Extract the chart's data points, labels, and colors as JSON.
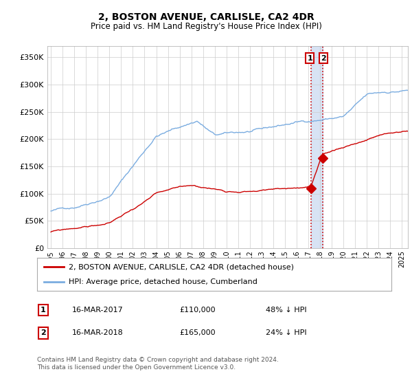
{
  "title": "2, BOSTON AVENUE, CARLISLE, CA2 4DR",
  "subtitle": "Price paid vs. HM Land Registry's House Price Index (HPI)",
  "ytick_values": [
    0,
    50000,
    100000,
    150000,
    200000,
    250000,
    300000,
    350000
  ],
  "ylim": [
    0,
    370000
  ],
  "xlim_start": 1994.7,
  "xlim_end": 2025.5,
  "hpi_color": "#7aace0",
  "price_color": "#cc0000",
  "vline_color": "#cc0000",
  "highlight_color": "#c8d8f0",
  "legend_label_price": "2, BOSTON AVENUE, CARLISLE, CA2 4DR (detached house)",
  "legend_label_hpi": "HPI: Average price, detached house, Cumberland",
  "annotation_1_date": "16-MAR-2017",
  "annotation_1_price": "£110,000",
  "annotation_1_pct": "48% ↓ HPI",
  "annotation_2_date": "16-MAR-2018",
  "annotation_2_price": "£165,000",
  "annotation_2_pct": "24% ↓ HPI",
  "footer": "Contains HM Land Registry data © Crown copyright and database right 2024.\nThis data is licensed under the Open Government Licence v3.0.",
  "point1_x": 2017.21,
  "point1_y": 110000,
  "point2_x": 2018.21,
  "point2_y": 165000,
  "background_color": "#ffffff",
  "plot_bg_color": "#ffffff",
  "grid_color": "#cccccc"
}
